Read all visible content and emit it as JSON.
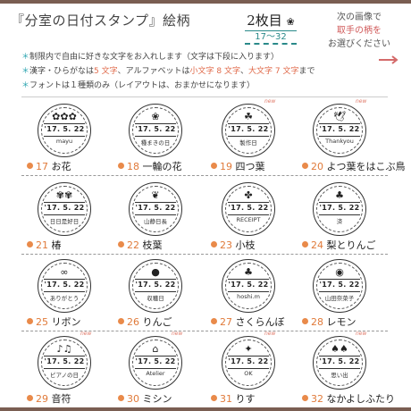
{
  "header": {
    "title": "『分室の日付スタンプ』絵柄",
    "sheet_label": "2枚目",
    "sheet_icon": "❀",
    "sheet_range": "17～32",
    "next_line1": "次の画像で",
    "next_line2": "取手の柄を",
    "next_line3": "お選びください"
  },
  "notes": {
    "line1": "制限内で自由に好きな文字をお入れします（文字は下段に入ります）",
    "line2_a": "漢字・ひらがなは",
    "line2_b": "5 文字",
    "line2_c": "、アルファベットは",
    "line2_d": "小文字 8 文字",
    "line2_e": "、",
    "line2_f": "大文字 7 文字",
    "line2_g": "まで",
    "line3": "フォントは１種類のみ（レイアウトは、おまかせになります）"
  },
  "new_label": "new",
  "stamps": [
    {
      "num": "17",
      "name": "お花",
      "icon": "✿✿✿",
      "date": "'17. 5. 22",
      "text": "mayu",
      "is_new": false
    },
    {
      "num": "18",
      "name": "一輪の花",
      "icon": "❀",
      "date": "'17. 5. 22",
      "text": "種まきの日",
      "is_new": false
    },
    {
      "num": "19",
      "name": "四つ葉",
      "icon": "☘",
      "date": "'17. 5. 22",
      "text": "製作日",
      "is_new": true
    },
    {
      "num": "20",
      "name": "よつ葉をはこぶ鳥",
      "icon": "🕊",
      "date": "'17. 5. 22",
      "text": "Thankyou",
      "is_new": true
    },
    {
      "num": "21",
      "name": "椿",
      "icon": "✾✾",
      "date": "'17. 5. 22",
      "text": "日日是好日",
      "is_new": false
    },
    {
      "num": "22",
      "name": "枝葉",
      "icon": "❦",
      "date": "'17. 5. 22",
      "text": "山静日長",
      "is_new": false
    },
    {
      "num": "23",
      "name": "小枝",
      "icon": "✤",
      "date": "'17. 5. 22",
      "text": "RECEIPT",
      "is_new": false
    },
    {
      "num": "24",
      "name": "梨とりんご",
      "icon": "♣",
      "date": "'17. 5. 22",
      "text": "済",
      "is_new": false
    },
    {
      "num": "25",
      "name": "リボン",
      "icon": "∞",
      "date": "'17. 5. 22",
      "text": "ありがとう",
      "is_new": false
    },
    {
      "num": "26",
      "name": "りんご",
      "icon": "●",
      "date": "'17. 5. 22",
      "text": "収穫日",
      "is_new": false
    },
    {
      "num": "27",
      "name": "さくらんぼ",
      "icon": "♣",
      "date": "'17. 5. 22",
      "text": "hoshi.m",
      "is_new": false
    },
    {
      "num": "28",
      "name": "レモン",
      "icon": "◉",
      "date": "'17. 5. 22",
      "text": "山田奈菜子",
      "is_new": false
    },
    {
      "num": "29",
      "name": "音符",
      "icon": "♪♫",
      "date": "'17. 5. 22",
      "text": "ピアノの日",
      "is_new": true
    },
    {
      "num": "30",
      "name": "ミシン",
      "icon": "⌂",
      "date": "'17. 5. 22",
      "text": "Atelier",
      "is_new": true
    },
    {
      "num": "31",
      "name": "りす",
      "icon": "✦",
      "date": "'17. 5. 22",
      "text": "OK",
      "is_new": true
    },
    {
      "num": "32",
      "name": "なかよしふたり",
      "icon": "♠♠",
      "date": "'17. 5. 22",
      "text": "思い出",
      "is_new": true
    }
  ],
  "colors": {
    "accent_orange": "#e98a4a",
    "accent_teal": "#2a8a8a",
    "accent_red": "#e06a4a",
    "frame_brown": "#7a5e52"
  }
}
